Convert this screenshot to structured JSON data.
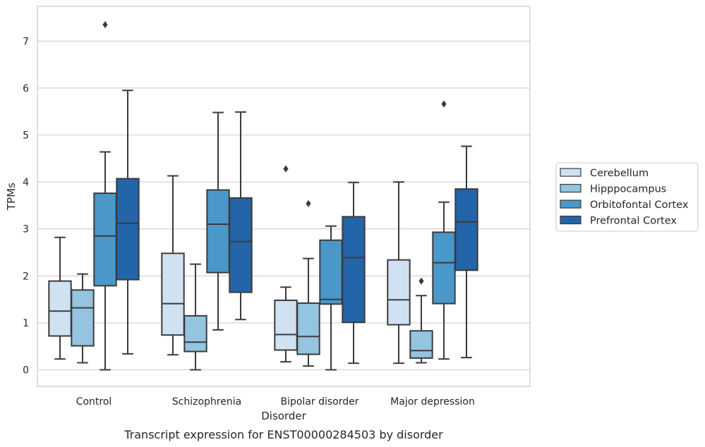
{
  "chart_data": {
    "type": "box",
    "caption": "Transcript expression for ENST00000284503 by disorder",
    "xlabel": "Disorder",
    "ylabel": "TPMs",
    "ylim": [
      -0.35,
      7.75
    ],
    "yticks": [
      0,
      1,
      2,
      3,
      4,
      5,
      6,
      7
    ],
    "grid": "horizontal",
    "legend_position": "right",
    "categories": [
      "Control",
      "Schizophrenia",
      "Bipolar disorder",
      "Major depression"
    ],
    "series": [
      {
        "name": "Cerebellum",
        "color": "#d0e1f2",
        "boxes": [
          {
            "whisker_low": 0.23,
            "q1": 0.72,
            "median": 1.25,
            "q3": 1.89,
            "whisker_high": 2.82,
            "outliers": []
          },
          {
            "whisker_low": 0.32,
            "q1": 0.74,
            "median": 1.41,
            "q3": 2.48,
            "whisker_high": 4.13,
            "outliers": []
          },
          {
            "whisker_low": 0.17,
            "q1": 0.42,
            "median": 0.75,
            "q3": 1.48,
            "whisker_high": 1.76,
            "outliers": [
              4.28
            ]
          },
          {
            "whisker_low": 0.14,
            "q1": 0.96,
            "median": 1.49,
            "q3": 2.34,
            "whisker_high": 4.0,
            "outliers": []
          }
        ]
      },
      {
        "name": "Hipppocampus",
        "color": "#94c4df",
        "boxes": [
          {
            "whisker_low": 0.15,
            "q1": 0.51,
            "median": 1.32,
            "q3": 1.7,
            "whisker_high": 2.04,
            "outliers": []
          },
          {
            "whisker_low": 0.0,
            "q1": 0.39,
            "median": 0.59,
            "q3": 1.15,
            "whisker_high": 2.25,
            "outliers": []
          },
          {
            "whisker_low": 0.08,
            "q1": 0.33,
            "median": 0.71,
            "q3": 1.42,
            "whisker_high": 2.37,
            "outliers": [
              3.54
            ]
          },
          {
            "whisker_low": 0.15,
            "q1": 0.25,
            "median": 0.41,
            "q3": 0.83,
            "whisker_high": 1.58,
            "outliers": [
              1.89
            ]
          }
        ]
      },
      {
        "name": "Orbitofontal Cortex",
        "color": "#4a98c9",
        "boxes": [
          {
            "whisker_low": 0.0,
            "q1": 1.79,
            "median": 2.85,
            "q3": 3.76,
            "whisker_high": 4.64,
            "outliers": [
              7.35
            ]
          },
          {
            "whisker_low": 0.85,
            "q1": 2.07,
            "median": 3.1,
            "q3": 3.83,
            "whisker_high": 5.48,
            "outliers": []
          },
          {
            "whisker_low": 0.0,
            "q1": 1.4,
            "median": 1.5,
            "q3": 2.76,
            "whisker_high": 3.06,
            "outliers": []
          },
          {
            "whisker_low": 0.23,
            "q1": 1.41,
            "median": 2.28,
            "q3": 2.93,
            "whisker_high": 3.57,
            "outliers": [
              5.66
            ]
          }
        ]
      },
      {
        "name": "Prefrontal Cortex",
        "color": "#2464a9",
        "boxes": [
          {
            "whisker_low": 0.34,
            "q1": 1.92,
            "median": 3.12,
            "q3": 4.07,
            "whisker_high": 5.95,
            "outliers": []
          },
          {
            "whisker_low": 1.07,
            "q1": 1.65,
            "median": 2.73,
            "q3": 3.66,
            "whisker_high": 5.49,
            "outliers": []
          },
          {
            "whisker_low": 0.14,
            "q1": 1.01,
            "median": 2.39,
            "q3": 3.26,
            "whisker_high": 3.99,
            "outliers": []
          },
          {
            "whisker_low": 0.26,
            "q1": 2.12,
            "median": 3.15,
            "q3": 3.85,
            "whisker_high": 4.76,
            "outliers": []
          }
        ]
      }
    ]
  }
}
